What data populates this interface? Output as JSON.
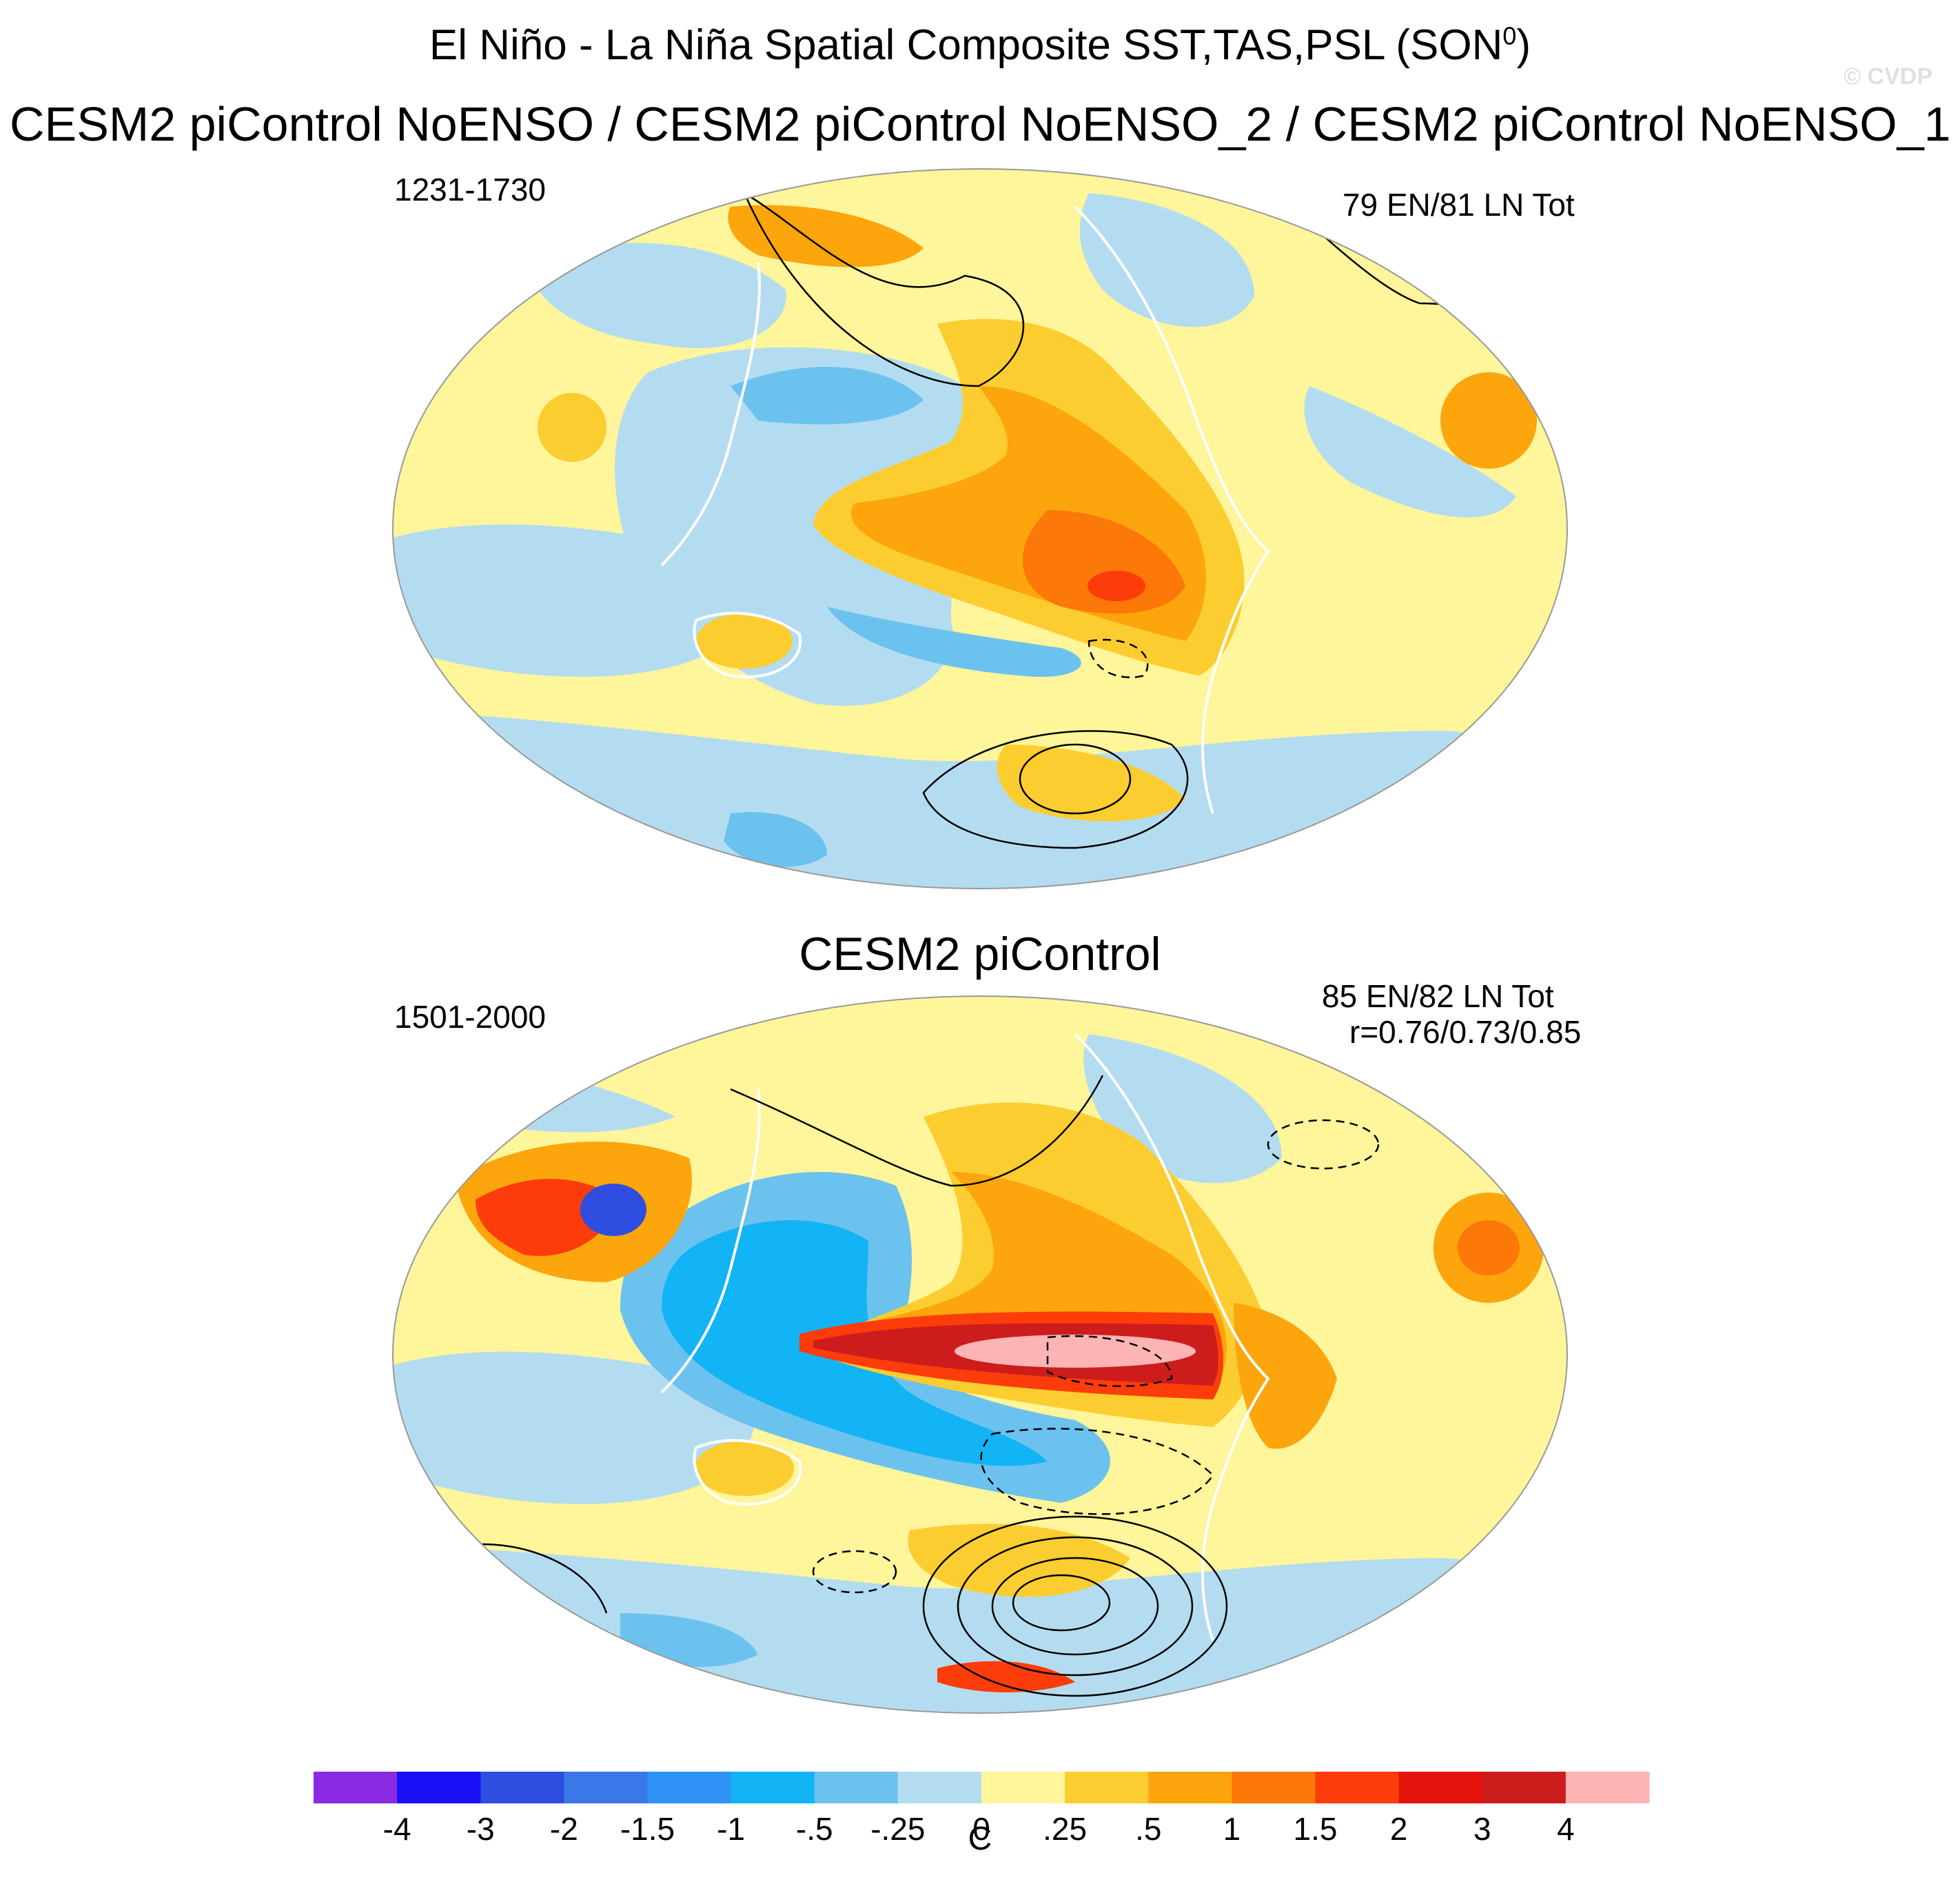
{
  "title": {
    "main": "El Niño - La Niña Spatial Composite SST,TAS,PSL (SON",
    "superscript": "0",
    "close": ")",
    "watermark": "© CVDP"
  },
  "subtitle": "CESM2 piControl NoENSO / CESM2 piControl NoENSO_2 / CESM2 piControl NoENSO_1",
  "panels": [
    {
      "title": "",
      "years": "1231-1730",
      "counts": "79 EN/81 LN Tot",
      "pattern_correlation": ""
    },
    {
      "title": "CESM2 piControl",
      "years": "1501-2000",
      "counts": "85 EN/82 LN Tot",
      "pattern_correlation": "r=0.76/0.73/0.85"
    }
  ],
  "colorbar": {
    "units": "C",
    "tick_labels": [
      "-4",
      "-3",
      "-2",
      "-1.5",
      "-1",
      "-.5",
      "-.25",
      "0",
      ".25",
      ".5",
      "1",
      "1.5",
      "2",
      "3",
      "4"
    ],
    "colors": [
      "#8a2be2",
      "#1a10f5",
      "#2d4ee0",
      "#3a78e8",
      "#2f92f5",
      "#12b4f5",
      "#6cc2ee",
      "#b4dcf0",
      "#fff59a",
      "#fccd30",
      "#fca50c",
      "#fc7808",
      "#fc3c0a",
      "#e2140c",
      "#cc1c1c",
      "#fcb4b4"
    ]
  },
  "legend": {
    "colors": {
      "land_outline": "#ffffff",
      "coastline": "#808080",
      "contour": "#000000"
    }
  }
}
